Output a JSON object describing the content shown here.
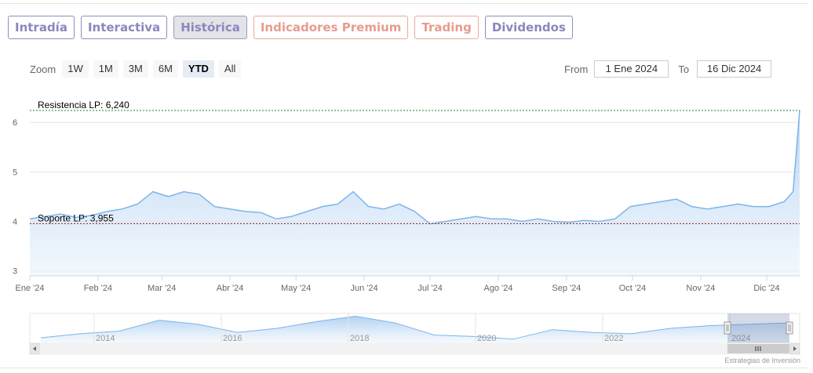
{
  "tabs": [
    {
      "label": "Intradía",
      "style": "purple",
      "active": false
    },
    {
      "label": "Interactiva",
      "style": "purple",
      "active": false
    },
    {
      "label": "Histórica",
      "style": "purple",
      "active": true
    },
    {
      "label": "Indicadores Premium",
      "style": "orange",
      "active": false
    },
    {
      "label": "Trading",
      "style": "orange",
      "active": false
    },
    {
      "label": "Dividendos",
      "style": "purple",
      "active": false
    }
  ],
  "zoom": {
    "label": "Zoom",
    "buttons": [
      "1W",
      "1M",
      "3M",
      "6M",
      "YTD",
      "All"
    ],
    "selected": "YTD"
  },
  "range": {
    "from_label": "From",
    "from_value": "1 Ene 2024",
    "to_label": "To",
    "to_value": "16 Dic 2024"
  },
  "credits": "Estrategias de Inversión",
  "colors": {
    "line": "#7cb5ec",
    "area_top": "#b7d4f1",
    "resistance": "#2e7d32",
    "support": "#8b1a1a",
    "tab_purple": "#8a87bd",
    "tab_orange": "#e69c8f"
  },
  "chart_data": {
    "type": "area",
    "ylim": [
      2.9,
      6.7
    ],
    "y_ticks": [
      3,
      4,
      5,
      6
    ],
    "y_tick_labels": [
      "3",
      "4",
      "5",
      "6"
    ],
    "x_domain": [
      "2024-01-01",
      "2024-12-16"
    ],
    "x_tick_dates": [
      "2024-01-01",
      "2024-02-01",
      "2024-03-01",
      "2024-04-01",
      "2024-05-01",
      "2024-06-01",
      "2024-07-01",
      "2024-08-01",
      "2024-09-01",
      "2024-10-01",
      "2024-11-01",
      "2024-12-01"
    ],
    "x_tick_labels": [
      "Ene '24",
      "Feb '24",
      "Mar '24",
      "Abr '24",
      "May '24",
      "Jun '24",
      "Jul '24",
      "Ago '24",
      "Sep '24",
      "Oct '24",
      "Nov '24",
      "Dic '24"
    ],
    "series": [
      {
        "dates": [
          "2024-01-01",
          "2024-01-08",
          "2024-01-15",
          "2024-01-22",
          "2024-01-29",
          "2024-02-05",
          "2024-02-12",
          "2024-02-19",
          "2024-02-26",
          "2024-03-04",
          "2024-03-11",
          "2024-03-18",
          "2024-03-25",
          "2024-04-01",
          "2024-04-08",
          "2024-04-15",
          "2024-04-22",
          "2024-04-29",
          "2024-05-06",
          "2024-05-13",
          "2024-05-20",
          "2024-05-27",
          "2024-06-03",
          "2024-06-10",
          "2024-06-17",
          "2024-06-24",
          "2024-07-01",
          "2024-07-08",
          "2024-07-15",
          "2024-07-22",
          "2024-07-29",
          "2024-08-05",
          "2024-08-12",
          "2024-08-19",
          "2024-08-26",
          "2024-09-02",
          "2024-09-09",
          "2024-09-16",
          "2024-09-23",
          "2024-09-30",
          "2024-10-07",
          "2024-10-14",
          "2024-10-21",
          "2024-10-28",
          "2024-11-04",
          "2024-11-11",
          "2024-11-18",
          "2024-11-25",
          "2024-12-02",
          "2024-12-09",
          "2024-12-13",
          "2024-12-16"
        ],
        "values": [
          4.05,
          4.1,
          4.15,
          4.08,
          4.12,
          4.2,
          4.25,
          4.35,
          4.6,
          4.5,
          4.6,
          4.55,
          4.3,
          4.25,
          4.2,
          4.18,
          4.05,
          4.1,
          4.2,
          4.3,
          4.35,
          4.6,
          4.3,
          4.25,
          4.35,
          4.2,
          3.95,
          4.0,
          4.05,
          4.1,
          4.05,
          4.05,
          4.0,
          4.05,
          4.0,
          3.98,
          4.02,
          4.0,
          4.05,
          4.3,
          4.35,
          4.4,
          4.45,
          4.3,
          4.25,
          4.3,
          4.35,
          4.3,
          4.3,
          4.4,
          4.6,
          6.24
        ]
      }
    ],
    "annotations": [
      {
        "label": "Resistencia LP: 6,240",
        "value": 6.24,
        "kind": "resistance"
      },
      {
        "label": "Soporte LP: 3,955",
        "value": 3.955,
        "kind": "support"
      }
    ],
    "navigator": {
      "x_labels": [
        "2014",
        "2016",
        "2018",
        "2020",
        "2022",
        "2024"
      ],
      "values": [
        3.2,
        3.5,
        3.7,
        4.5,
        4.2,
        3.6,
        3.9,
        4.4,
        4.8,
        4.3,
        3.4,
        3.3,
        3.1,
        3.8,
        3.6,
        3.5,
        3.9,
        4.1,
        4.2,
        4.3
      ]
    }
  }
}
